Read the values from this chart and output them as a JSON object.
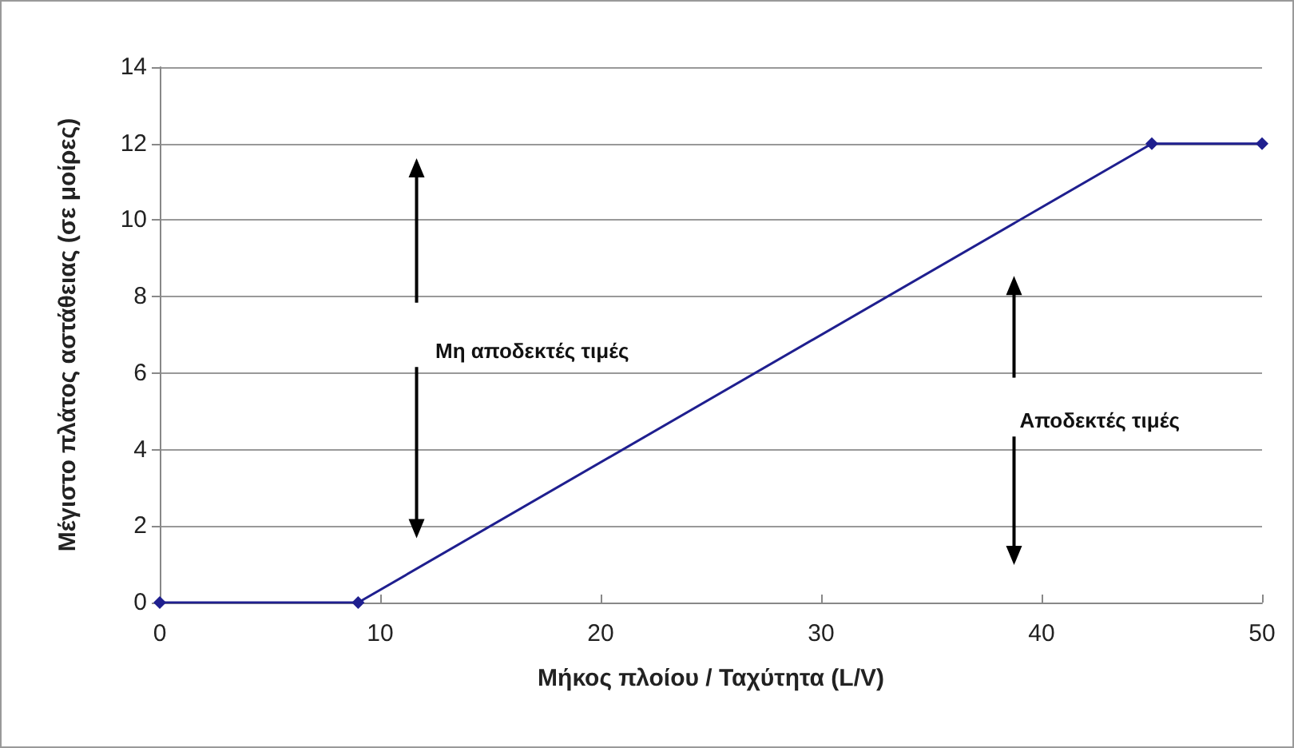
{
  "chart_data": {
    "type": "line",
    "xlabel": "Μήκος πλοίου / Ταχύτητα (L/V)",
    "ylabel": "Μέγιστο πλάτος αστάθειας (σε μοίρες)",
    "x": [
      0,
      9,
      45,
      50
    ],
    "series": [
      {
        "color": "#1f1f8f",
        "values": [
          0,
          0,
          12,
          12
        ]
      }
    ],
    "xlim": [
      0,
      50
    ],
    "xticks": [
      0,
      10,
      20,
      30,
      40,
      50
    ],
    "ylim": [
      0,
      14
    ],
    "yticks": [
      0,
      2,
      4,
      6,
      8,
      10,
      12,
      14
    ],
    "grid": "y",
    "marker": "diamond",
    "line_style": "solid",
    "annotations": [
      "Μη αποδεκτές τιμές",
      "Αποδεκτές τιμές"
    ]
  }
}
